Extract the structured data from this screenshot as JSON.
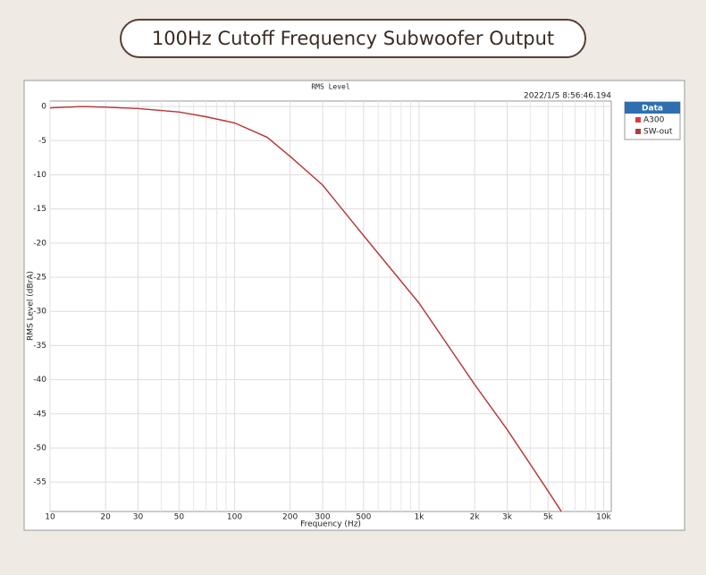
{
  "page_title": "100Hz Cutoff Frequency Subwoofer Output",
  "chart_data": {
    "type": "line",
    "title": "RMS Level",
    "timestamp": "2022/1/5 8:56:46.194",
    "x_label": "Frequency (Hz)",
    "y_label": "RMS Level (dBrA)",
    "xscale": "log",
    "grid": true,
    "legend_title": "Data",
    "legend": "right",
    "xlim": [
      10,
      11000
    ],
    "ylim": [
      -59.3,
      0.8
    ],
    "xticks": [
      10,
      20,
      30,
      50,
      100,
      200,
      300,
      500,
      {
        "value": 1000,
        "label": "1k"
      },
      {
        "value": 2000,
        "label": "2k"
      },
      {
        "value": 3000,
        "label": "3k"
      },
      {
        "value": 5000,
        "label": "5k"
      },
      {
        "value": 10000,
        "label": "10k"
      }
    ],
    "xminorticks": [
      40,
      60,
      70,
      80,
      90,
      400,
      600,
      700,
      800,
      900,
      4000,
      6000,
      7000,
      8000,
      9000
    ],
    "yticks": [
      0,
      -5,
      -10,
      -15,
      -20,
      -25,
      -30,
      -35,
      -40,
      -45,
      -50,
      -55
    ],
    "x": [
      10,
      15,
      20,
      30,
      50,
      70,
      100,
      150,
      200,
      300,
      500,
      1000,
      2000,
      3000,
      5000,
      5900
    ],
    "series": [
      {
        "name": "A300",
        "color": "#e03a3a",
        "values": [
          -0.2,
          0,
          -0.1,
          -0.3,
          -0.8,
          -1.5,
          -2.4,
          -4.5,
          -7.3,
          -11.5,
          -18.9,
          -28.8,
          -40.7,
          -47.3,
          -56.3,
          -59.3
        ]
      },
      {
        "name": "SW-out",
        "color": "#b23a3a",
        "values": [
          -0.2,
          0,
          -0.1,
          -0.3,
          -0.8,
          -1.5,
          -2.4,
          -4.5,
          -7.3,
          -11.5,
          -18.9,
          -28.8,
          -40.7,
          -47.3,
          -56.3,
          -59.3
        ]
      }
    ]
  }
}
